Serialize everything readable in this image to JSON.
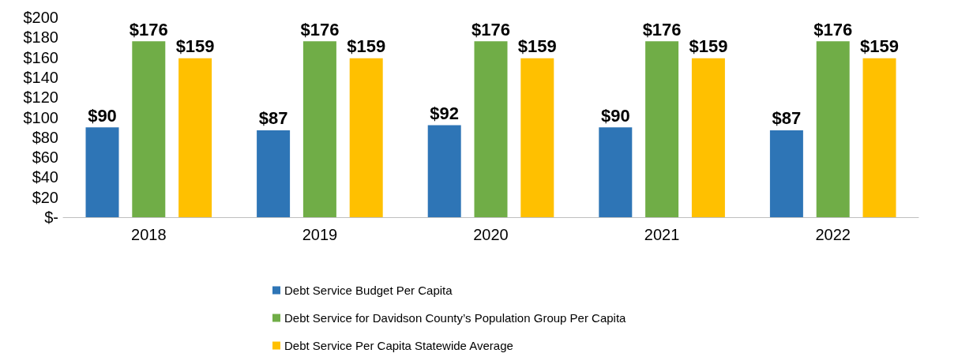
{
  "chart_data": {
    "type": "bar",
    "categories": [
      "2018",
      "2019",
      "2020",
      "2021",
      "2022"
    ],
    "series": [
      {
        "name": "Debt Service Budget Per Capita",
        "color": "#2e75b6",
        "values": [
          90,
          87,
          92,
          90,
          87
        ],
        "value_labels": [
          "$90",
          "$87",
          "$92",
          "$90",
          "$87"
        ]
      },
      {
        "name": "Debt Service for Davidson County’s Population Group Per Capita",
        "color": "#70ad47",
        "values": [
          176,
          176,
          176,
          176,
          176
        ],
        "value_labels": [
          "$176",
          "$176",
          "$176",
          "$176",
          "$176"
        ]
      },
      {
        "name": "Debt Service Per Capita Statewide Average",
        "color": "#ffc000",
        "values": [
          159,
          159,
          159,
          159,
          159
        ],
        "value_labels": [
          "$159",
          "$159",
          "$159",
          "$159",
          "$159"
        ]
      }
    ],
    "ylim": [
      0,
      200
    ],
    "yticks": [
      {
        "value": 0,
        "label": "$-"
      },
      {
        "value": 20,
        "label": "$20"
      },
      {
        "value": 40,
        "label": "$40"
      },
      {
        "value": 60,
        "label": "$60"
      },
      {
        "value": 80,
        "label": "$80"
      },
      {
        "value": 100,
        "label": "$100"
      },
      {
        "value": 120,
        "label": "$120"
      },
      {
        "value": 140,
        "label": "$140"
      },
      {
        "value": 160,
        "label": "$160"
      },
      {
        "value": 180,
        "label": "$180"
      },
      {
        "value": 200,
        "label": "$200"
      }
    ],
    "grid": false,
    "legend": "bottom"
  }
}
